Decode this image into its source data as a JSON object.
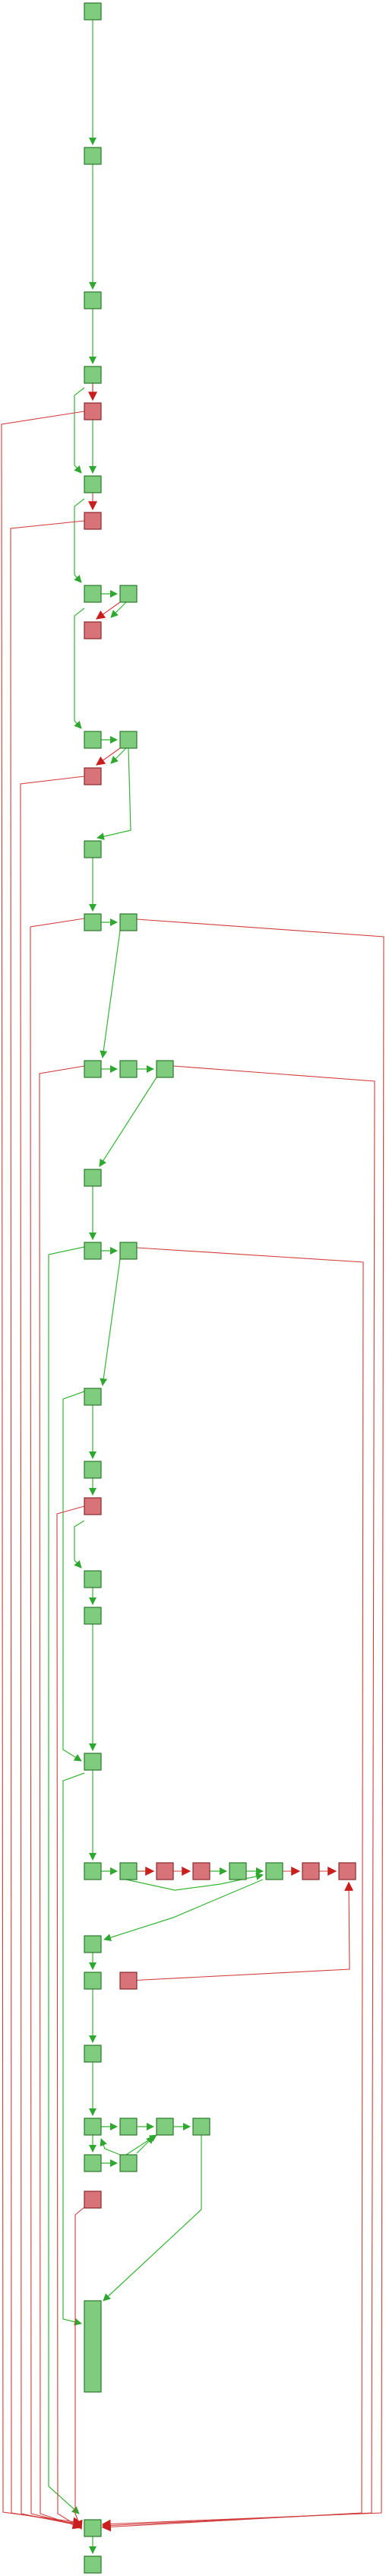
{
  "diagram": {
    "kind": "control-flow graph",
    "colors": {
      "ok_node_fill": "#7fcc7f",
      "ok_node_stroke": "#2a7a2a",
      "error_node_fill": "#d9737a",
      "error_node_stroke": "#8a2a2a",
      "ok_edge": "#36b536",
      "error_edge": "#d23c3c"
    },
    "node_types": [
      "ok",
      "error"
    ],
    "legend": "none",
    "labels": "none"
  }
}
